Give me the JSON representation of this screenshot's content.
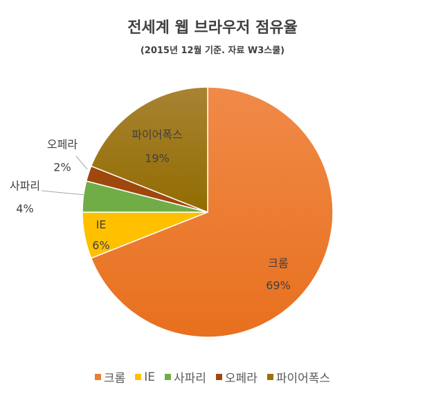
{
  "chart_data": {
    "type": "pie",
    "title": "전세계 웹 브라우저 점유율",
    "subtitle": "(2015년 12월 기준. 자료 W3스쿨)",
    "categories": [
      "크롬",
      "IE",
      "사파리",
      "오페라",
      "파이어폭스"
    ],
    "values": [
      69,
      6,
      4,
      2,
      19
    ],
    "value_labels": [
      "69%",
      "6%",
      "4%",
      "2%",
      "19%"
    ],
    "colors": [
      "#ED7D31",
      "#FFC000",
      "#70AD47",
      "#9E480E",
      "#997300"
    ],
    "legend_position": "bottom"
  }
}
